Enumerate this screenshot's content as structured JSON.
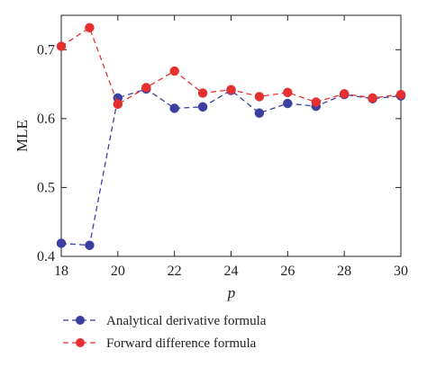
{
  "chart_data": {
    "type": "line",
    "x": [
      18,
      19,
      20,
      21,
      22,
      23,
      24,
      25,
      26,
      27,
      28,
      29,
      30
    ],
    "series": [
      {
        "name": "Analytical derivative formula",
        "color": "#3b3fa0",
        "values": [
          0.419,
          0.416,
          0.63,
          0.643,
          0.615,
          0.617,
          0.641,
          0.608,
          0.622,
          0.618,
          0.635,
          0.629,
          0.633
        ]
      },
      {
        "name": "Forward difference formula",
        "color": "#e53030",
        "values": [
          0.705,
          0.732,
          0.621,
          0.645,
          0.669,
          0.637,
          0.642,
          0.632,
          0.638,
          0.624,
          0.636,
          0.63,
          0.635
        ]
      }
    ],
    "xlabel": "p",
    "ylabel": "MLE",
    "xlim": [
      18,
      30
    ],
    "ylim": [
      0.4,
      0.75
    ],
    "xticks": [
      18,
      20,
      22,
      24,
      26,
      28,
      30
    ],
    "yticks": [
      0.4,
      0.5,
      0.6,
      0.7
    ],
    "ytick_labels": [
      "0.4",
      "0.5",
      "0.6",
      "0.7"
    ],
    "grid": false,
    "legend_position": "bottom"
  }
}
